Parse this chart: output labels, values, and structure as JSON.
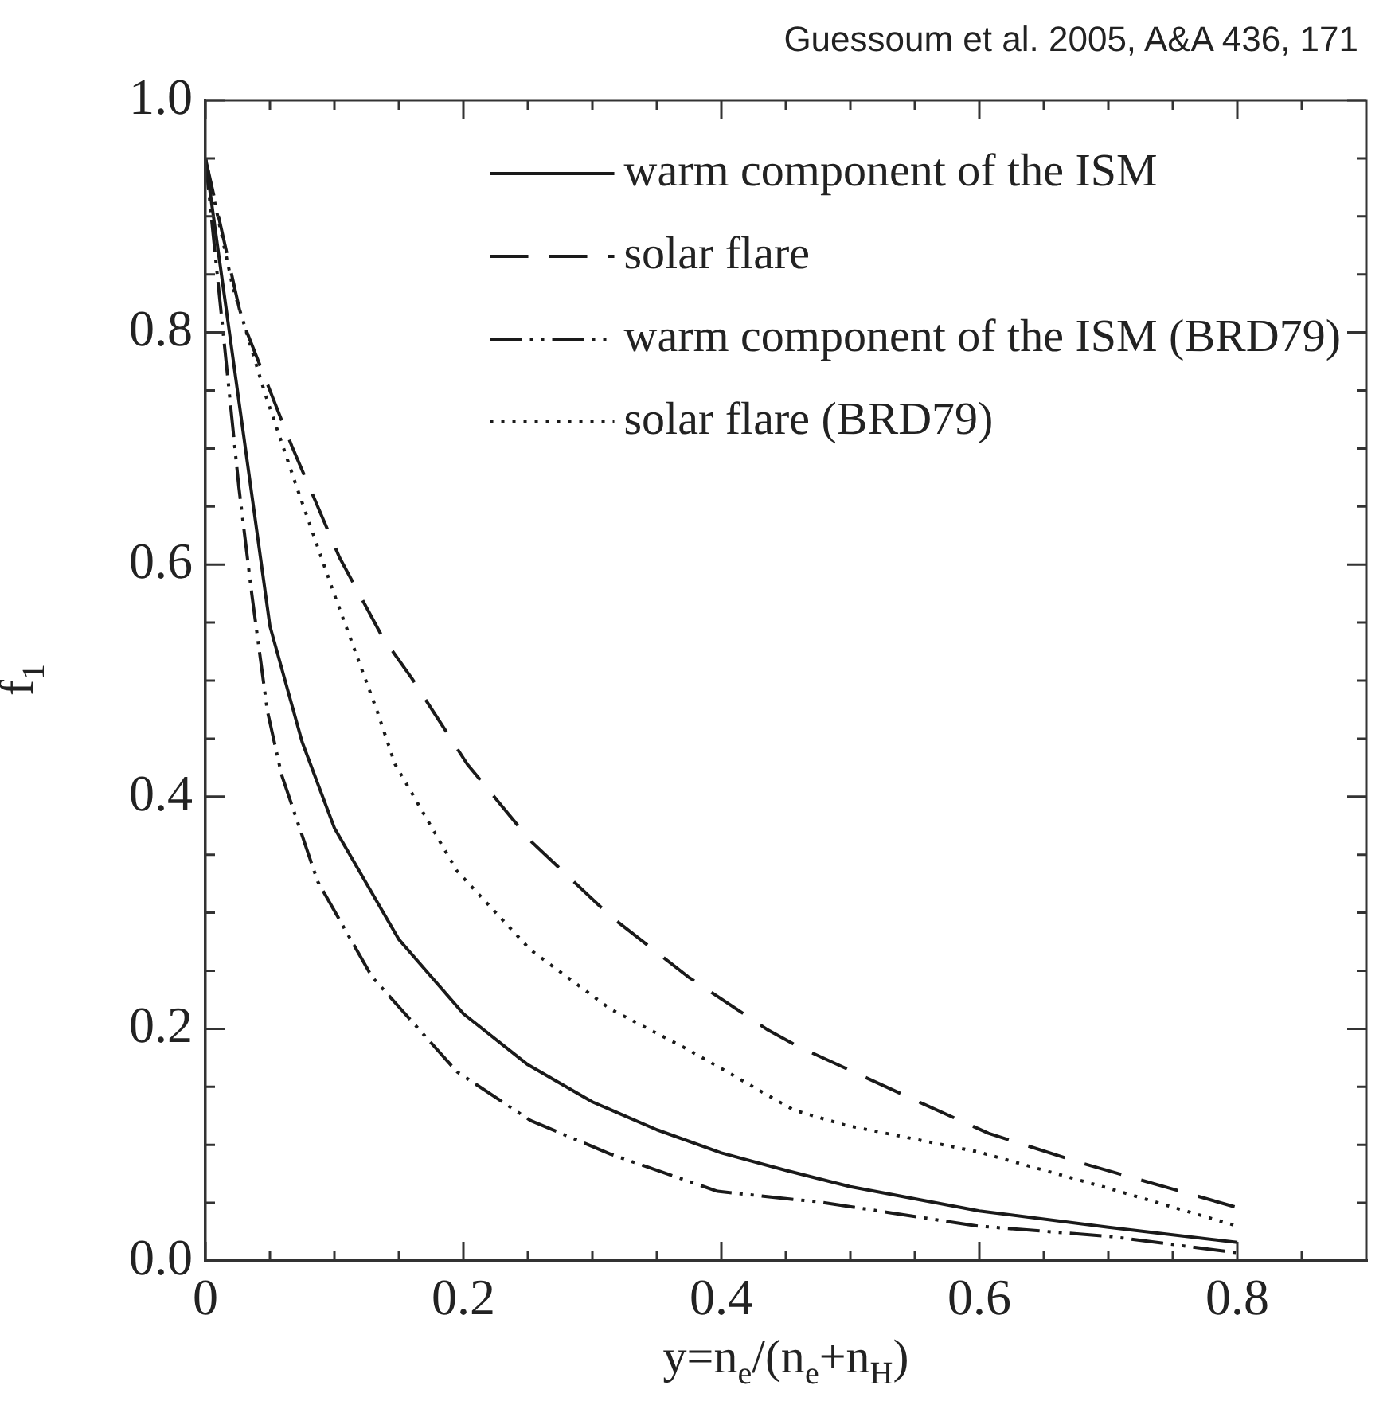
{
  "chart_data": {
    "type": "line",
    "xlabel": "y=n$_{e}$/(n$_{e}$+n$_{H}$)",
    "ylabel": "f$_{1}$",
    "annotations": [
      "Guessoum et al. 2005, A&A 436, 171"
    ],
    "xlim": [
      0,
      0.9
    ],
    "ylim": [
      0,
      1
    ],
    "xticks": [
      0,
      {
        "value": 0.05,
        "label": null
      },
      0.2,
      {
        "value": 0.1,
        "label": null
      },
      {
        "value": 0.15,
        "label": null
      },
      {
        "value": 0.25,
        "label": null
      },
      {
        "value": 0.3,
        "label": null
      },
      {
        "value": 0.35,
        "label": null
      },
      0.4,
      {
        "value": 0.45,
        "label": null
      },
      {
        "value": 0.5,
        "label": null
      },
      {
        "value": 0.55,
        "label": null
      },
      0.6,
      {
        "value": 0.65,
        "label": null
      },
      {
        "value": 0.7,
        "label": null
      },
      {
        "value": 0.75,
        "label": null
      },
      0.8,
      {
        "value": 0.85,
        "label": null
      }
    ],
    "yticks": [
      {
        "value": 0,
        "label": "0.0"
      },
      {
        "value": 0.05,
        "label": null
      },
      {
        "value": 0.1,
        "label": null
      },
      {
        "value": 0.15,
        "label": null
      },
      0.2,
      {
        "value": 0.25,
        "label": null
      },
      {
        "value": 0.3,
        "label": null
      },
      {
        "value": 0.35,
        "label": null
      },
      0.4,
      {
        "value": 0.45,
        "label": null
      },
      {
        "value": 0.5,
        "label": null
      },
      {
        "value": 0.55,
        "label": null
      },
      0.6,
      {
        "value": 0.65,
        "label": null
      },
      {
        "value": 0.7,
        "label": null
      },
      {
        "value": 0.75,
        "label": null
      },
      0.8,
      {
        "value": 0.85,
        "label": null
      },
      {
        "value": 0.9,
        "label": null
      },
      {
        "value": 0.95,
        "label": null
      },
      {
        "value": 1,
        "label": "1.0"
      }
    ],
    "legend": "top right",
    "marker": "none",
    "series": [
      {
        "name": "warm component of the ISM",
        "color": "#1a1a1a",
        "line_style": "solid",
        "x": [
          0,
          0.05,
          0.075,
          0.1,
          0.15,
          0.2,
          0.25,
          0.3,
          0.35,
          0.4,
          0.45,
          0.5,
          0.6,
          0.7,
          0.8
        ],
        "values": [
          0.95,
          0.547,
          0.447,
          0.373,
          0.277,
          0.213,
          0.169,
          0.137,
          0.113,
          0.093,
          0.078,
          0.064,
          0.043,
          0.029,
          0.016
        ]
      },
      {
        "name": "solar flare",
        "color": "#1a1a1a",
        "line_style": "dashed",
        "x": [
          0,
          0.028,
          0.067,
          0.104,
          0.137,
          0.16,
          0.203,
          0.252,
          0.314,
          0.374,
          0.436,
          0.459,
          0.557,
          0.607,
          0.677,
          0.8
        ],
        "values": [
          0.95,
          0.812,
          0.702,
          0.606,
          0.538,
          0.502,
          0.428,
          0.362,
          0.297,
          0.245,
          0.199,
          0.185,
          0.135,
          0.11,
          0.085,
          0.046
        ]
      },
      {
        "name": "warm component of the ISM (BRD79)",
        "color": "#1a1a1a",
        "line_style": "dashdot",
        "x": [
          0,
          0.026,
          0.036,
          0.048,
          0.059,
          0.087,
          0.129,
          0.195,
          0.252,
          0.314,
          0.397,
          0.456,
          0.475,
          0.599,
          0.702,
          0.8
        ],
        "values": [
          0.95,
          0.666,
          0.574,
          0.474,
          0.419,
          0.327,
          0.245,
          0.163,
          0.121,
          0.092,
          0.06,
          0.053,
          0.051,
          0.03,
          0.021,
          0.007
        ]
      },
      {
        "name": "solar flare (BRD79)",
        "color": "#1a1a1a",
        "line_style": "dotted",
        "x": [
          0,
          0.021,
          0.046,
          0.071,
          0.1,
          0.133,
          0.147,
          0.195,
          0.252,
          0.314,
          0.376,
          0.456,
          0.496,
          0.599,
          0.702,
          0.8
        ],
        "values": [
          0.95,
          0.84,
          0.748,
          0.666,
          0.574,
          0.474,
          0.428,
          0.336,
          0.268,
          0.217,
          0.181,
          0.13,
          0.117,
          0.094,
          0.062,
          0.03
        ]
      }
    ]
  }
}
